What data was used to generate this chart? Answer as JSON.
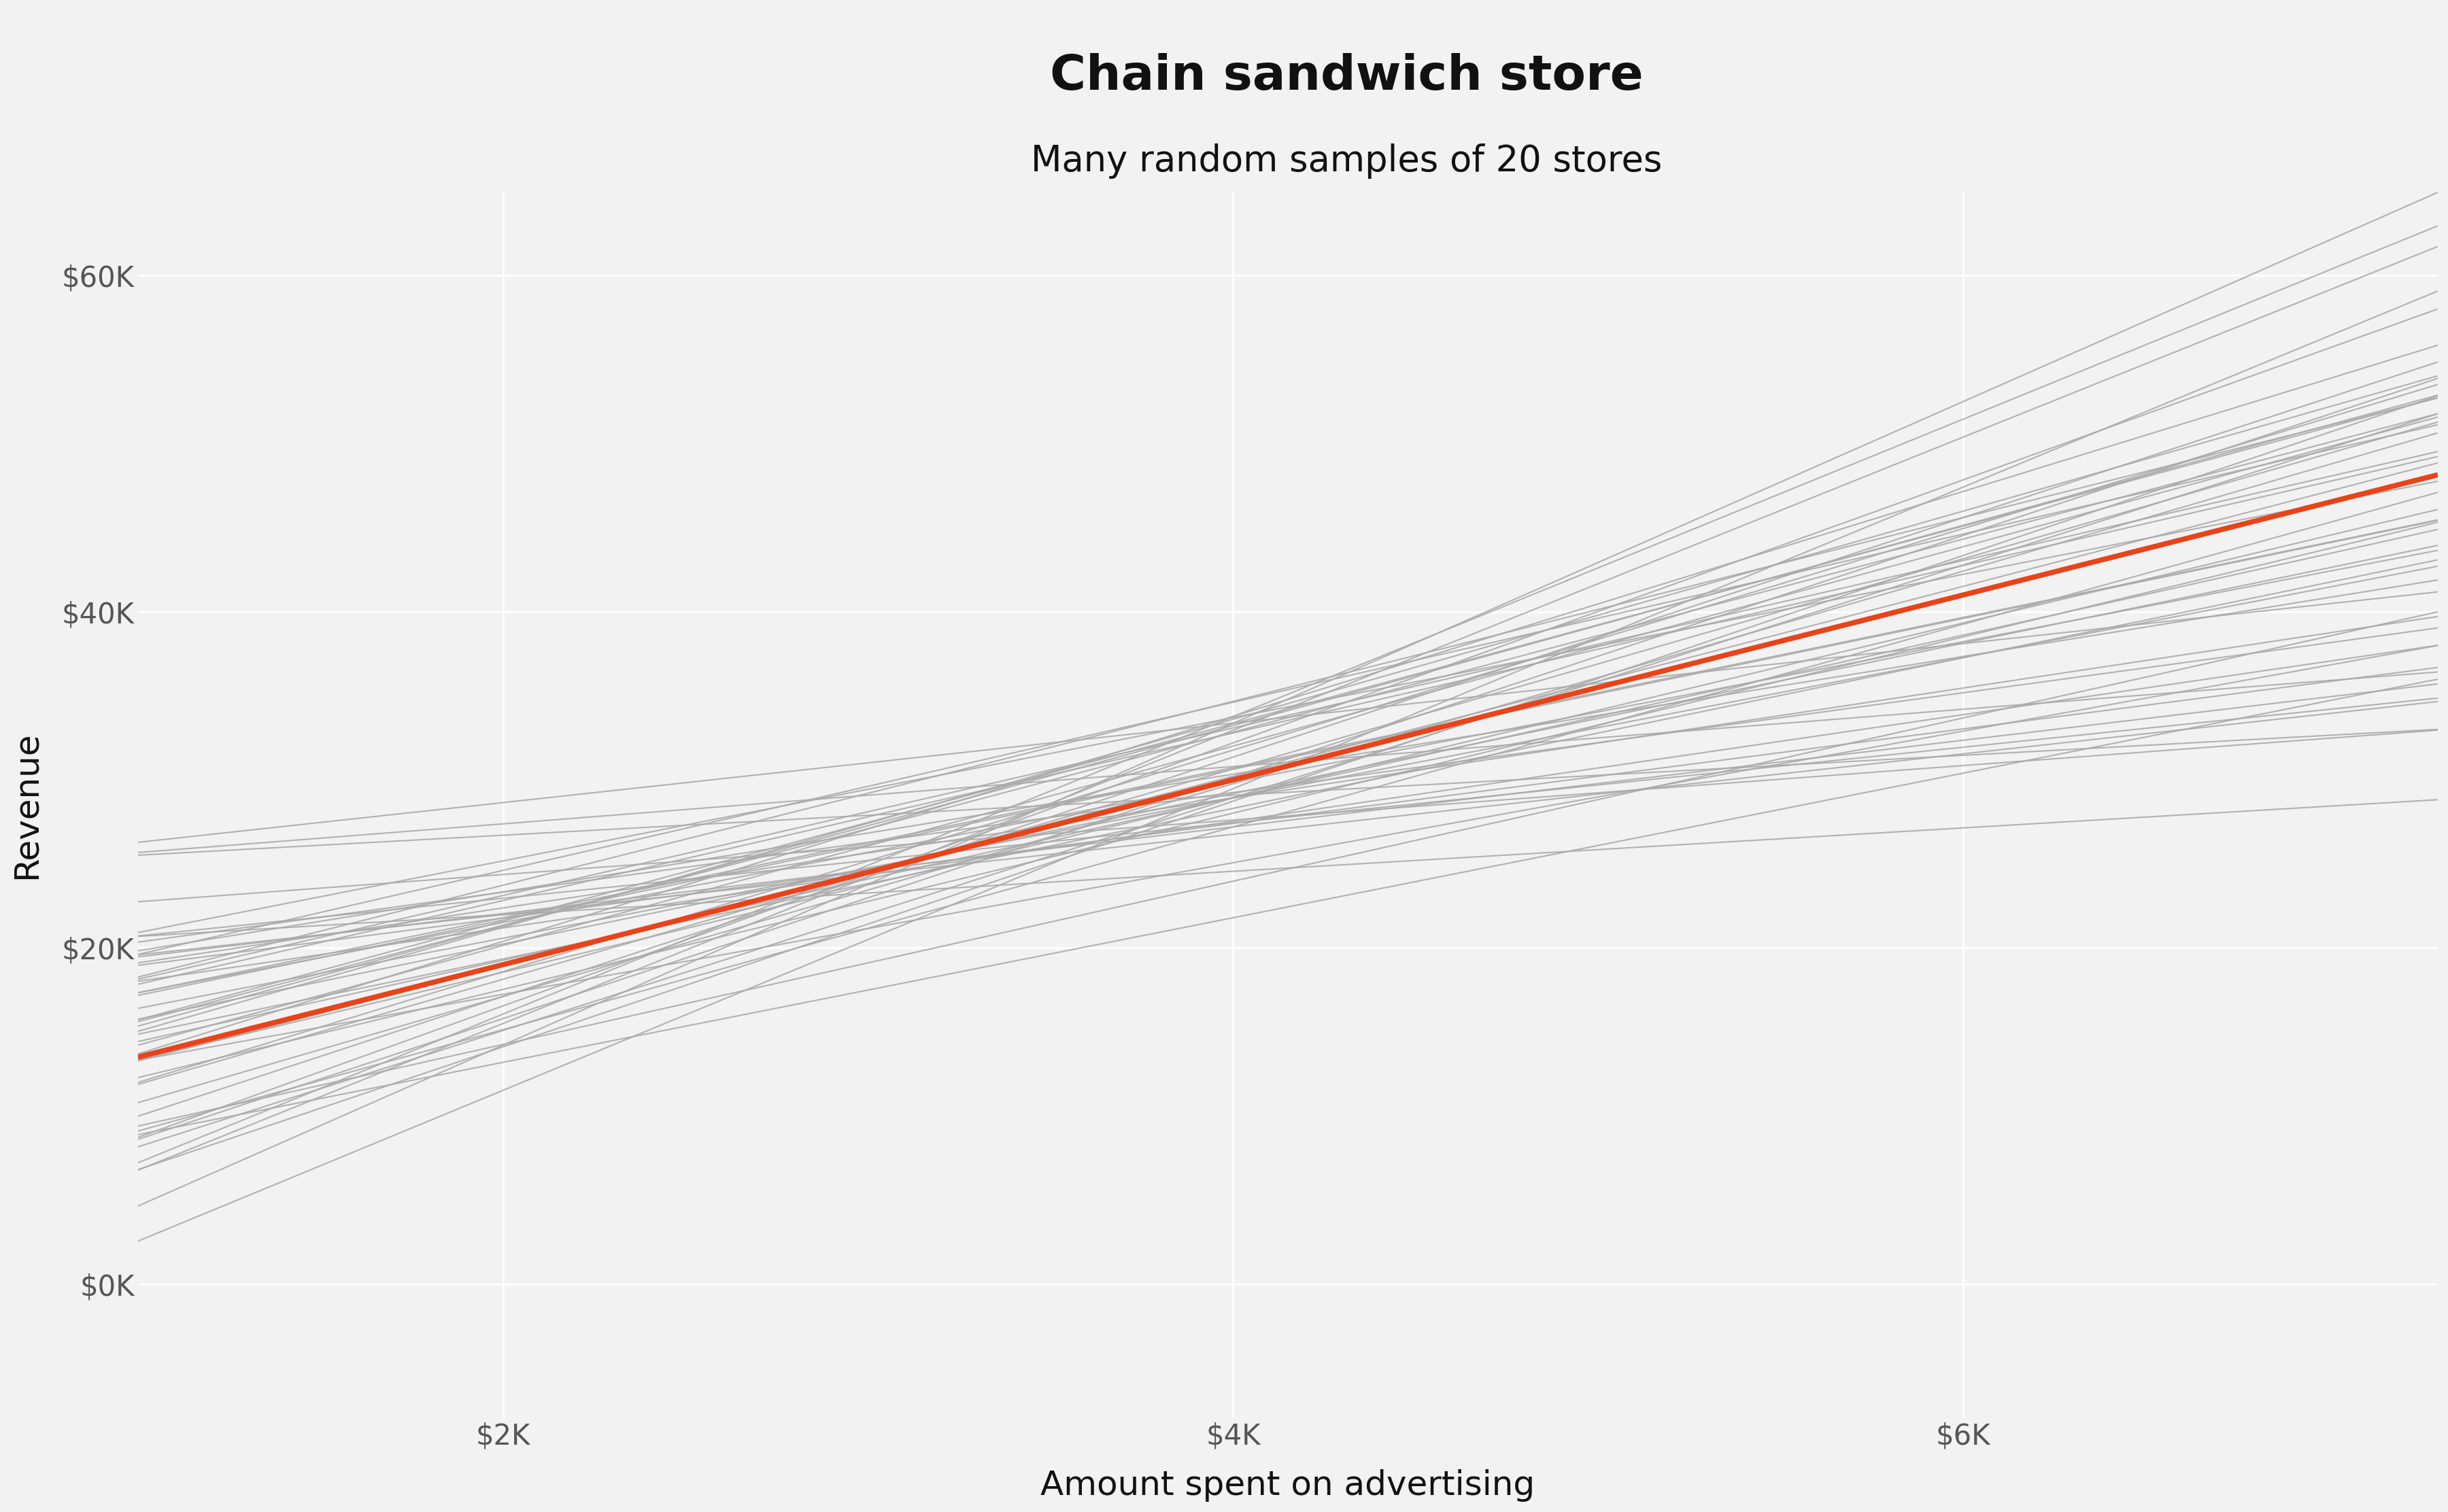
{
  "title": "Chain sandwich store",
  "subtitle": "Many random samples of 20 stores",
  "xlabel": "Amount spent on advertising",
  "ylabel": "Revenue",
  "x_min": 1000,
  "x_max": 7300,
  "y_min": -8000,
  "y_max": 65000,
  "x_ticks": [
    2000,
    4000,
    6000
  ],
  "y_ticks": [
    0,
    20000,
    40000,
    60000
  ],
  "pop_intercept": 8000,
  "pop_slope": 5.5,
  "n_samples": 50,
  "anchor_x": 3500,
  "anchor_y": 27500,
  "slope_std": 2.2,
  "anchor_y_std": 3000,
  "gray_color": "#aaaaaa",
  "red_color": "#e8431a",
  "background_color": "#f2f2f2",
  "grid_color": "#ffffff",
  "title_fontsize": 52,
  "subtitle_fontsize": 38,
  "label_fontsize": 36,
  "tick_fontsize": 30,
  "gray_linewidth": 1.5,
  "red_linewidth": 5.5,
  "random_seed": 42
}
